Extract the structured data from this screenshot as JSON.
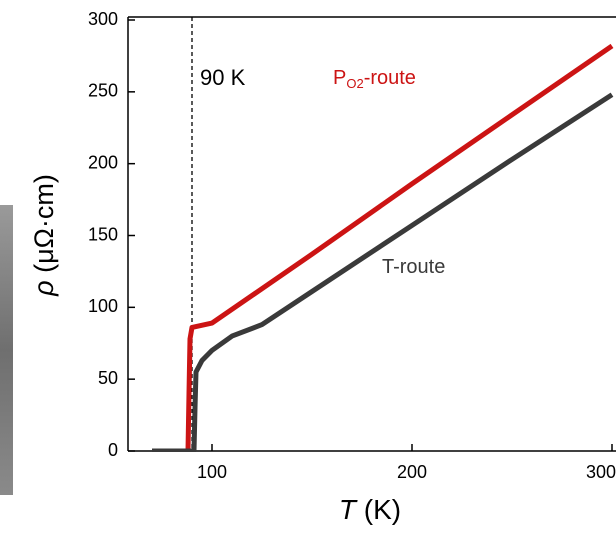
{
  "chart_data": {
    "type": "line",
    "xlabel": {
      "symbol": "T",
      "unit": " (K)"
    },
    "ylabel": {
      "symbol": "ρ",
      "unit": " (μΩ·cm)"
    },
    "xlim": [
      58,
      300
    ],
    "ylim": [
      0,
      300
    ],
    "xticks": [
      100,
      200,
      300
    ],
    "yticks": [
      0,
      50,
      100,
      150,
      200,
      250,
      300
    ],
    "vline": {
      "x": 90,
      "label": "90 K"
    },
    "series": [
      {
        "name": "P",
        "name_sub": "O2",
        "name_suffix": "-route",
        "color": "#cc1414",
        "x": [
          86,
          88,
          88.5,
          89,
          90,
          100,
          150,
          200,
          250,
          300
        ],
        "values": [
          0,
          0,
          40,
          78,
          86,
          89,
          137,
          186,
          234,
          282
        ]
      },
      {
        "name": "T-route",
        "color": "#3a3a3a",
        "x": [
          70,
          80,
          88,
          90,
          91,
          91.5,
          92,
          95,
          100,
          110,
          125,
          150,
          200,
          250,
          300
        ],
        "values": [
          0,
          0,
          0,
          0,
          0,
          30,
          55,
          63,
          70,
          80,
          88,
          111,
          157,
          203,
          248
        ]
      }
    ]
  }
}
